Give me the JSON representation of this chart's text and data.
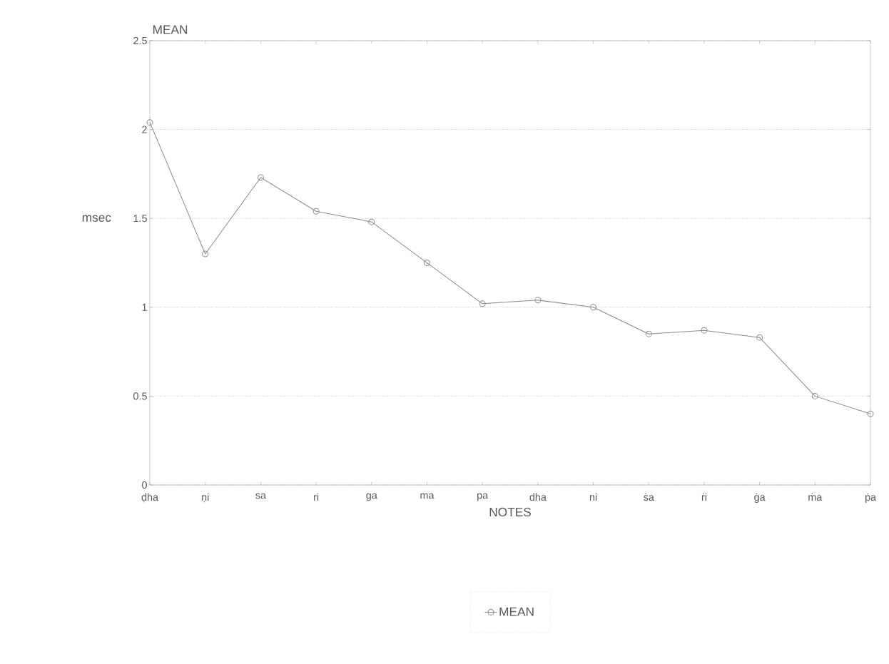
{
  "chart_data": {
    "type": "line",
    "title": "MEAN",
    "xlabel": "NOTES",
    "ylabel": "msec",
    "categories": [
      "ḍha",
      "ṇi",
      "sa",
      "ri",
      "ga",
      "ma",
      "pa",
      "dha",
      "ni",
      "ṡa",
      "ṙi",
      "ġa",
      "ṁa",
      "ṗa"
    ],
    "series": [
      {
        "name": "MEAN",
        "color": "#8a8a8a",
        "values": [
          2.04,
          1.3,
          1.73,
          1.54,
          1.48,
          1.25,
          1.02,
          1.04,
          1.0,
          0.85,
          0.87,
          0.83,
          0.5,
          0.4
        ]
      }
    ],
    "ylim": [
      0,
      2.5
    ],
    "yticks": [
      0,
      0.5,
      1,
      1.5,
      2,
      2.5
    ],
    "grid": "y",
    "legend": "bottom",
    "marker": "circle",
    "line_style": "solid"
  }
}
